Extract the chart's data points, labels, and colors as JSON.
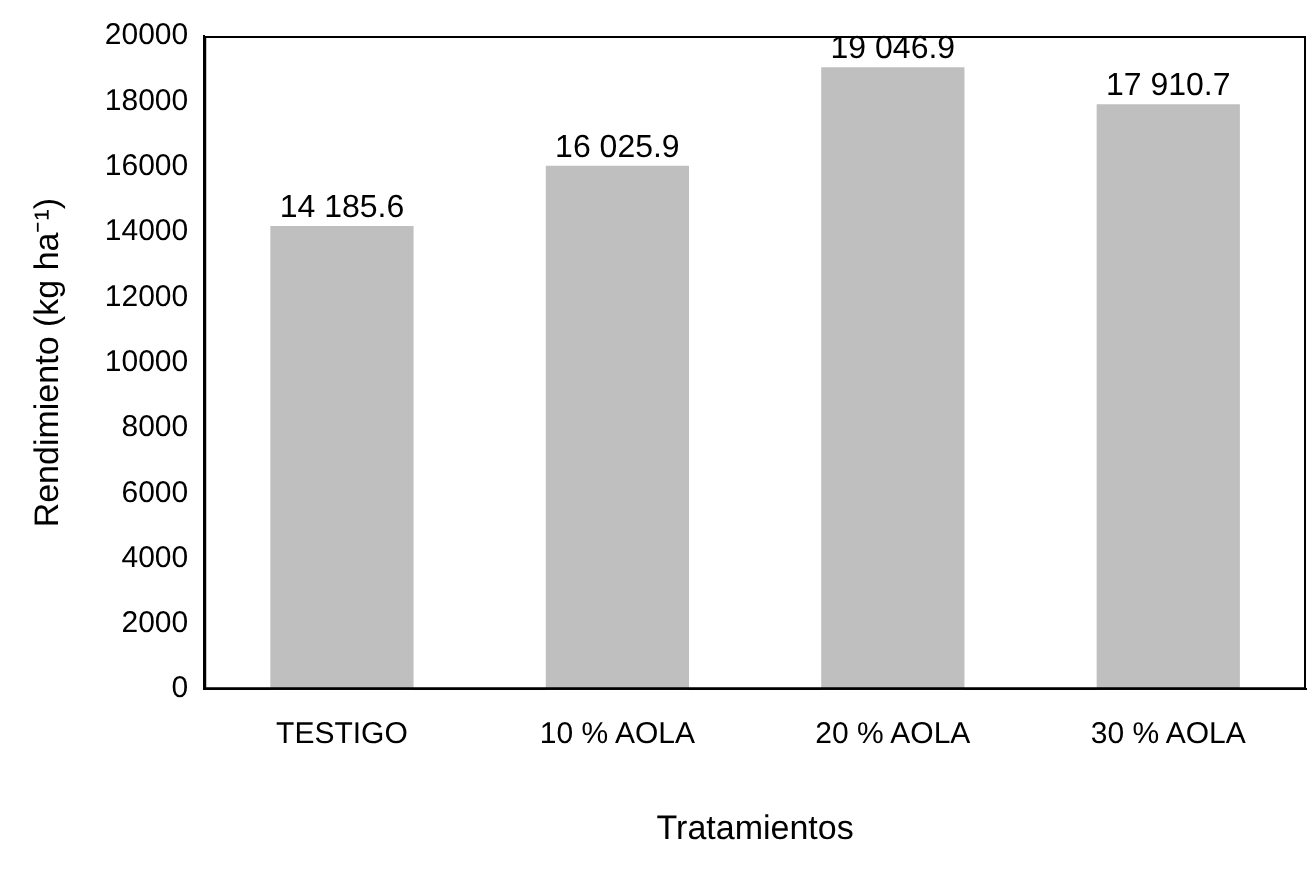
{
  "chart_data": {
    "type": "bar",
    "xlabel": "Tratamientos",
    "ylabel": "Rendimiento (kg ha⁻¹)",
    "categories": [
      "TESTIGO",
      "10 % AOLA",
      "20 % AOLA",
      "30 % AOLA"
    ],
    "values": [
      14185.6,
      16025.9,
      19046.9,
      17910.7
    ],
    "value_labels": [
      "14 185.6",
      "16 025.9",
      "19 046.9",
      "17 910.7"
    ],
    "color": "#bfbfbf",
    "ylim": [
      0,
      20000
    ],
    "yticks": [
      0,
      2000,
      4000,
      6000,
      8000,
      10000,
      12000,
      14000,
      16000,
      18000,
      20000
    ],
    "grid": false,
    "legend": false
  }
}
